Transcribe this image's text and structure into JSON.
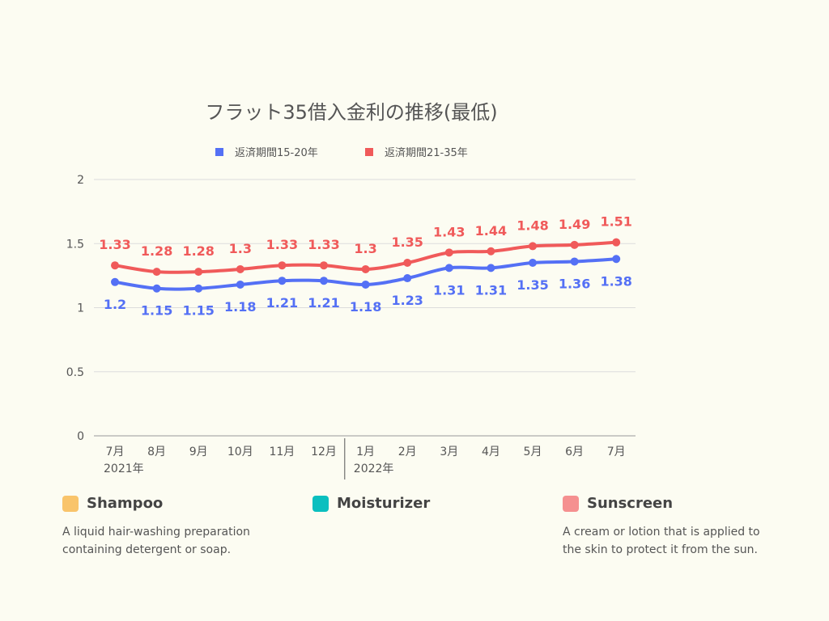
{
  "chart_data": {
    "type": "line",
    "title": "フラット35借入金利の推移(最低)",
    "categories": [
      "7月",
      "8月",
      "9月",
      "10月",
      "11月",
      "12月",
      "1月",
      "2月",
      "3月",
      "4月",
      "5月",
      "6月",
      "7月"
    ],
    "year_labels": [
      "2021年",
      "2022年"
    ],
    "ylim": [
      0,
      2
    ],
    "yticks": [
      "0",
      "0.5",
      "1",
      "1.5",
      "2"
    ],
    "grid": true,
    "legend_position": "top",
    "series": [
      {
        "name": "返済期間15-20年",
        "color": "#5470f5",
        "values": [
          1.2,
          1.15,
          1.15,
          1.18,
          1.21,
          1.21,
          1.18,
          1.23,
          1.31,
          1.31,
          1.35,
          1.36,
          1.38
        ]
      },
      {
        "name": "返済期間21-35年",
        "color": "#f05a5a",
        "values": [
          1.33,
          1.28,
          1.28,
          1.3,
          1.33,
          1.33,
          1.3,
          1.35,
          1.43,
          1.44,
          1.48,
          1.49,
          1.51
        ]
      }
    ]
  },
  "categories_section": [
    {
      "title": "Shampoo",
      "color": "#f9c46b",
      "description": "A liquid hair-washing preparation containing detergent or soap."
    },
    {
      "title": "Moisturizer",
      "color": "#0bbfbf",
      "description": ""
    },
    {
      "title": "Sunscreen",
      "color": "#f59090",
      "description": "A cream or lotion that is applied to the skin to protect it from the sun."
    }
  ]
}
